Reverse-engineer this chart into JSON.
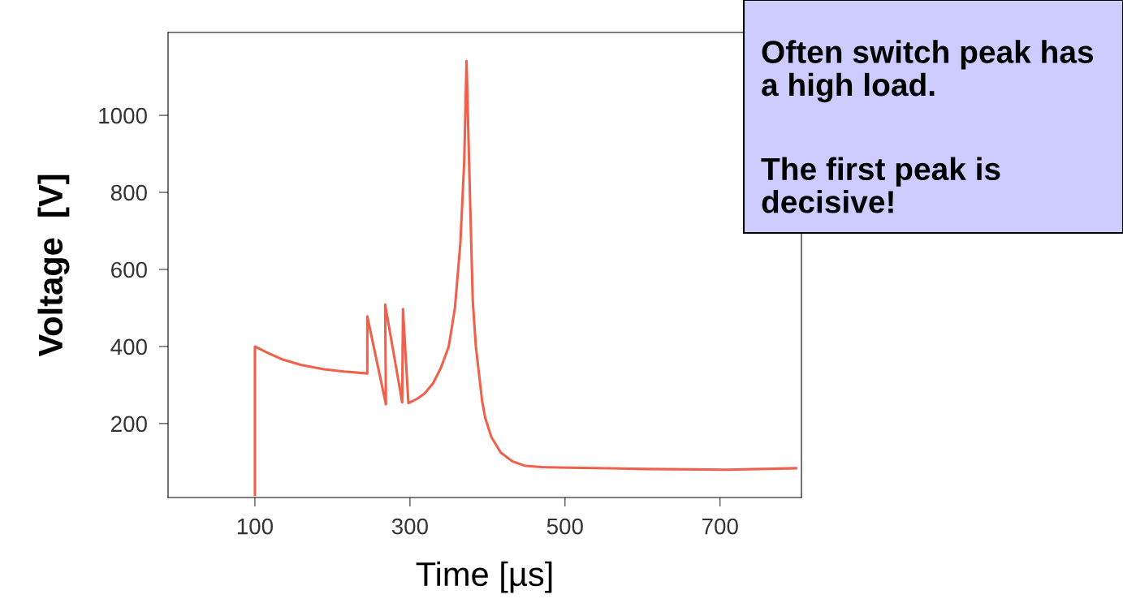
{
  "chart_data": {
    "type": "line",
    "xlabel": "Time [µs]",
    "ylabel": "Voltage  [V]",
    "annotations": [
      "Often switch peak has a high load.",
      "The first peak is decisive!"
    ],
    "xlim": [
      -12,
      805
    ],
    "ylim": [
      8,
      1215
    ],
    "xticks": [
      100,
      300,
      500,
      700
    ],
    "yticks": [
      200,
      400,
      600,
      800,
      1000
    ],
    "grid": false,
    "marker": "none",
    "line_style": "solid",
    "series": [
      {
        "color": "#f0604a",
        "x": [
          100,
          100,
          115,
          136,
          160,
          189,
          215,
          245,
          245,
          269,
          268,
          290,
          291,
          298,
          310,
          319,
          330,
          340,
          350,
          358,
          365,
          370,
          373,
          376,
          381,
          385,
          389,
          393,
          397,
          405,
          417,
          432,
          449,
          470,
          490,
          605,
          709,
          798
        ],
        "values": [
          15,
          400,
          385,
          366,
          352,
          341,
          335,
          330,
          478,
          250,
          509,
          255,
          497,
          253,
          265,
          278,
          305,
          345,
          400,
          500,
          667,
          880,
          1141,
          900,
          520,
          400,
          330,
          260,
          215,
          165,
          125,
          102,
          90,
          87,
          86,
          82,
          80,
          84
        ]
      }
    ]
  }
}
